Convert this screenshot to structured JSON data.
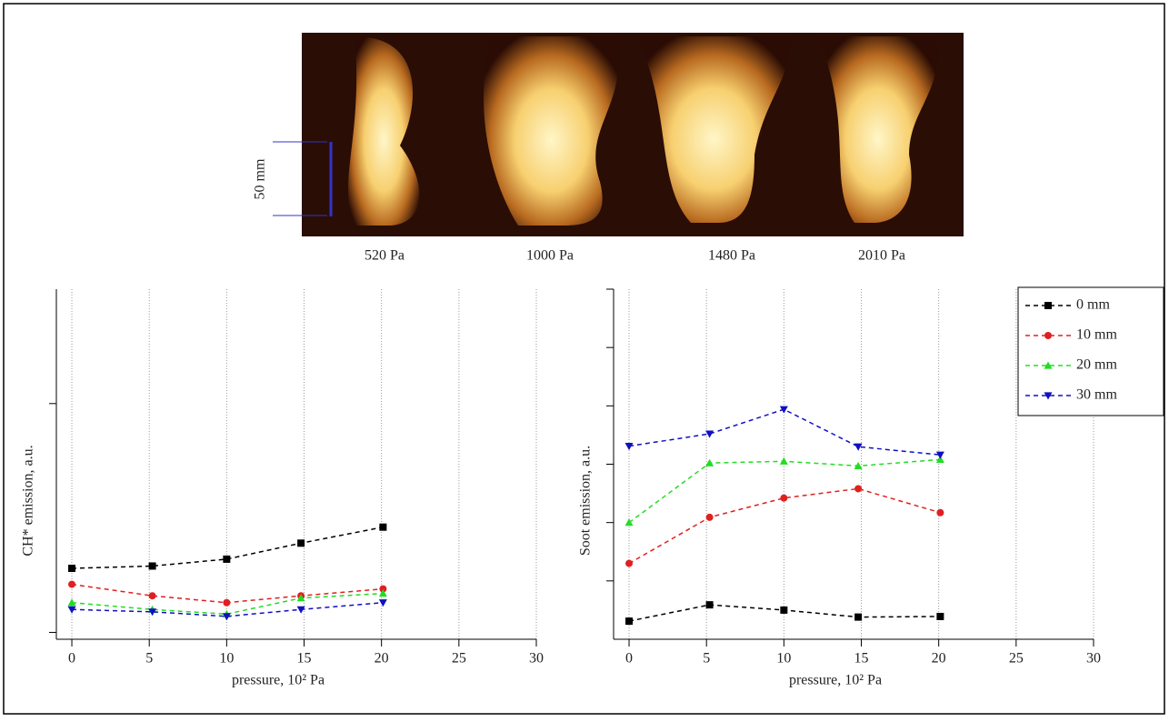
{
  "photos": {
    "labels": [
      "520 Pa",
      "1000 Pa",
      "1480 Pa",
      "2010 Pa"
    ],
    "scale": "50 mm"
  },
  "chart_data": [
    {
      "type": "line",
      "ylabel": "CH* emission, a.u.",
      "xlabel": "pressure, 10² Pa",
      "xlim": [
        -1,
        30
      ],
      "xticks": [
        0,
        5,
        10,
        15,
        20,
        25,
        30
      ],
      "ylim": [
        -0.03,
        1.5
      ],
      "yticks": [
        0,
        1
      ],
      "grid": true,
      "x": [
        0,
        5.2,
        10,
        14.8,
        20.1
      ],
      "series": [
        {
          "name": "0 mm",
          "color": "#000000",
          "marker": "square",
          "values": [
            0.28,
            0.29,
            0.32,
            0.39,
            0.46
          ]
        },
        {
          "name": "10 mm",
          "color": "#e02020",
          "marker": "circle",
          "values": [
            0.21,
            0.16,
            0.13,
            0.16,
            0.19
          ]
        },
        {
          "name": "20 mm",
          "color": "#22dd22",
          "marker": "triangle-up",
          "values": [
            0.13,
            0.1,
            0.08,
            0.15,
            0.17
          ]
        },
        {
          "name": "30 mm",
          "color": "#1010c0",
          "marker": "triangle-down",
          "values": [
            0.1,
            0.09,
            0.07,
            0.1,
            0.13
          ]
        }
      ]
    },
    {
      "type": "line",
      "ylabel": "Soot emission, a.u.",
      "xlabel": "pressure, 10² Pa",
      "xlim": [
        -1,
        30
      ],
      "xticks": [
        0,
        5,
        10,
        15,
        20,
        25,
        30
      ],
      "ylim": [
        0,
        6
      ],
      "yticks": [
        1,
        2,
        3,
        4,
        5,
        6
      ],
      "grid": true,
      "legend": "upper right",
      "x": [
        0,
        5.2,
        10,
        14.8,
        20.1
      ],
      "series": [
        {
          "name": "0 mm",
          "color": "#000000",
          "marker": "square",
          "values": [
            0.31,
            0.59,
            0.5,
            0.38,
            0.39
          ]
        },
        {
          "name": "10 mm",
          "color": "#e02020",
          "marker": "circle",
          "values": [
            1.3,
            2.09,
            2.42,
            2.58,
            2.17
          ]
        },
        {
          "name": "20 mm",
          "color": "#22dd22",
          "marker": "triangle-up",
          "values": [
            2.0,
            3.02,
            3.05,
            2.97,
            3.08
          ]
        },
        {
          "name": "30 mm",
          "color": "#1010c0",
          "marker": "triangle-down",
          "values": [
            3.31,
            3.52,
            3.94,
            3.3,
            3.16
          ]
        }
      ]
    }
  ]
}
